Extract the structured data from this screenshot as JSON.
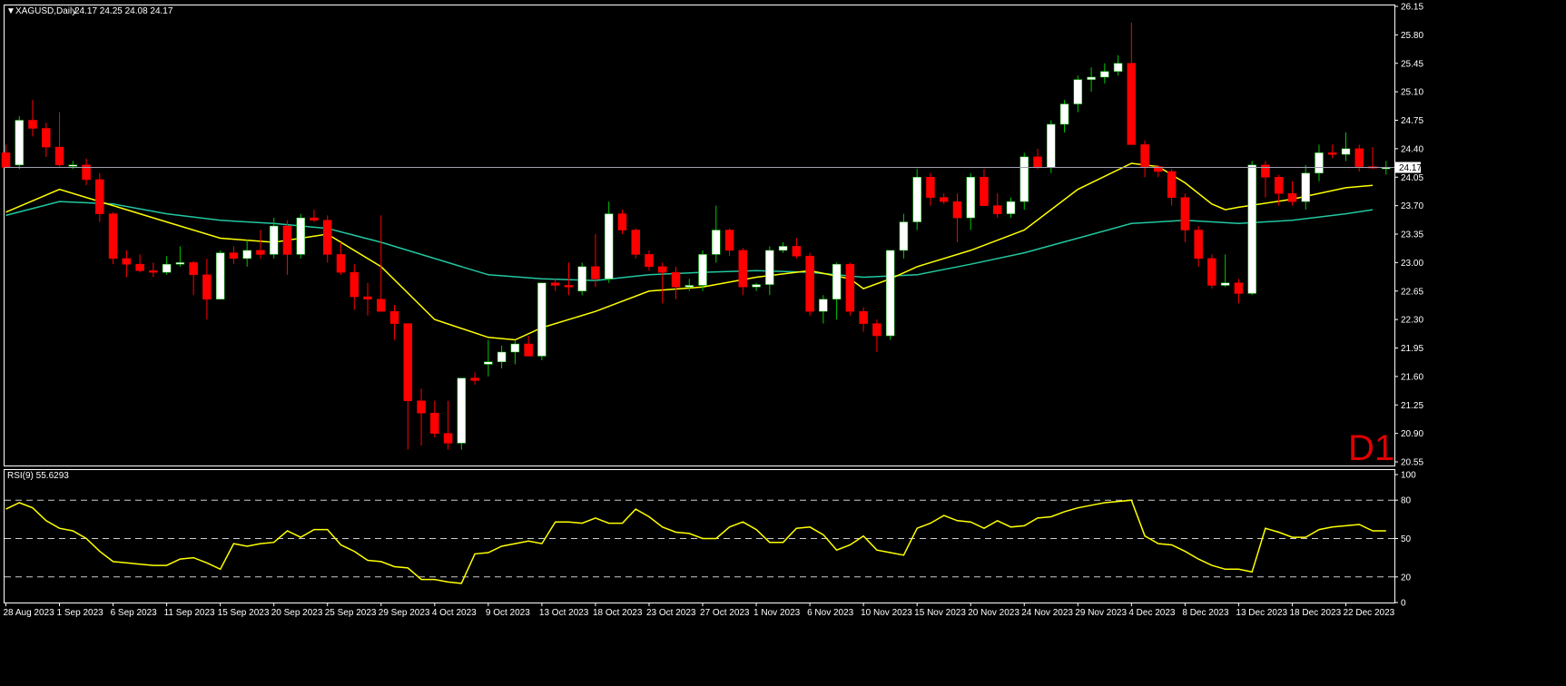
{
  "header": {
    "symbol_label": "XAGUSD,Daily",
    "ohlc_label": "24.17 24.25 24.08 24.17"
  },
  "timeframe_badge": "D1",
  "indicator": {
    "label": "RSI(9) 55.6293",
    "ticks": [
      {
        "label": "100",
        "value": 100
      },
      {
        "label": "80",
        "value": 80
      },
      {
        "label": "50",
        "value": 50
      },
      {
        "label": "20",
        "value": 20
      },
      {
        "label": "0",
        "value": 0
      }
    ],
    "levels": [
      80,
      50,
      20
    ],
    "range": [
      0,
      100
    ]
  },
  "price_tag": {
    "value": 24.17,
    "label": "24.17"
  },
  "colors": {
    "background": "#000000",
    "frame": "#ffffff",
    "bull_candle": "#ffffff",
    "bear_candle": "#ff0000",
    "bull_wick": "#00c800",
    "bear_wick": "#ff0000",
    "ma_fast": "#ffff00",
    "ma_slow": "#20c8a0",
    "rsi_line": "#ffff00",
    "level_line": "#cccccc",
    "price_line": "#a0a0b0"
  },
  "chart_data": {
    "type": "candlestick",
    "symbol": "XAGUSD",
    "timeframe": "Daily",
    "ylim": [
      20.55,
      26.15
    ],
    "y_ticks": [
      {
        "label": "26.15",
        "value": 26.15
      },
      {
        "label": "25.80",
        "value": 25.8
      },
      {
        "label": "25.45",
        "value": 25.45
      },
      {
        "label": "25.10",
        "value": 25.1
      },
      {
        "label": "24.75",
        "value": 24.75
      },
      {
        "label": "24.40",
        "value": 24.4
      },
      {
        "label": "24.05",
        "value": 24.05
      },
      {
        "label": "23.70",
        "value": 23.7
      },
      {
        "label": "23.35",
        "value": 23.35
      },
      {
        "label": "23.00",
        "value": 23.0
      },
      {
        "label": "22.65",
        "value": 22.65
      },
      {
        "label": "22.30",
        "value": 22.3
      },
      {
        "label": "21.95",
        "value": 21.95
      },
      {
        "label": "21.60",
        "value": 21.6
      },
      {
        "label": "21.25",
        "value": 21.25
      },
      {
        "label": "20.90",
        "value": 20.9
      },
      {
        "label": "20.55",
        "value": 20.55
      }
    ],
    "x_ticks": [
      {
        "label": "28 Aug 2023",
        "index": 0
      },
      {
        "label": "1 Sep 2023",
        "index": 4
      },
      {
        "label": "6 Sep 2023",
        "index": 8
      },
      {
        "label": "11 Sep 2023",
        "index": 12
      },
      {
        "label": "15 Sep 2023",
        "index": 16
      },
      {
        "label": "20 Sep 2023",
        "index": 20
      },
      {
        "label": "25 Sep 2023",
        "index": 24
      },
      {
        "label": "29 Sep 2023",
        "index": 28
      },
      {
        "label": "4 Oct 2023",
        "index": 32
      },
      {
        "label": "9 Oct 2023",
        "index": 36
      },
      {
        "label": "13 Oct 2023",
        "index": 40
      },
      {
        "label": "18 Oct 2023",
        "index": 44
      },
      {
        "label": "23 Oct 2023",
        "index": 48
      },
      {
        "label": "27 Oct 2023",
        "index": 52
      },
      {
        "label": "1 Nov 2023",
        "index": 56
      },
      {
        "label": "6 Nov 2023",
        "index": 60
      },
      {
        "label": "10 Nov 2023",
        "index": 64
      },
      {
        "label": "15 Nov 2023",
        "index": 68
      },
      {
        "label": "20 Nov 2023",
        "index": 72
      },
      {
        "label": "24 Nov 2023",
        "index": 76
      },
      {
        "label": "29 Nov 2023",
        "index": 80
      },
      {
        "label": "4 Dec 2023",
        "index": 84
      },
      {
        "label": "8 Dec 2023",
        "index": 88
      },
      {
        "label": "13 Dec 2023",
        "index": 92
      },
      {
        "label": "18 Dec 2023",
        "index": 96
      },
      {
        "label": "22 Dec 2023",
        "index": 100
      }
    ],
    "candles": [
      [
        24.35,
        24.45,
        24.17,
        24.17
      ],
      [
        24.2,
        24.8,
        24.15,
        24.75
      ],
      [
        24.75,
        25.0,
        24.55,
        24.65
      ],
      [
        24.65,
        24.72,
        24.3,
        24.42
      ],
      [
        24.42,
        24.85,
        24.18,
        24.2
      ],
      [
        24.2,
        24.25,
        24.15,
        24.2
      ],
      [
        24.2,
        24.28,
        23.95,
        24.02
      ],
      [
        24.02,
        24.1,
        23.5,
        23.6
      ],
      [
        23.6,
        23.62,
        22.98,
        23.05
      ],
      [
        23.05,
        23.15,
        22.82,
        22.98
      ],
      [
        22.98,
        23.1,
        22.88,
        22.9
      ],
      [
        22.9,
        23.0,
        22.82,
        22.88
      ],
      [
        22.88,
        23.08,
        22.85,
        22.98
      ],
      [
        22.98,
        23.2,
        22.95,
        23.0
      ],
      [
        23.0,
        23.02,
        22.6,
        22.85
      ],
      [
        22.85,
        23.05,
        22.3,
        22.55
      ],
      [
        22.55,
        23.15,
        22.55,
        23.12
      ],
      [
        23.12,
        23.2,
        22.98,
        23.05
      ],
      [
        23.05,
        23.28,
        22.95,
        23.15
      ],
      [
        23.15,
        23.4,
        23.05,
        23.1
      ],
      [
        23.1,
        23.55,
        23.05,
        23.45
      ],
      [
        23.45,
        23.52,
        22.85,
        23.1
      ],
      [
        23.1,
        23.6,
        23.05,
        23.55
      ],
      [
        23.55,
        23.65,
        23.5,
        23.52
      ],
      [
        23.52,
        23.58,
        23.0,
        23.1
      ],
      [
        23.1,
        23.25,
        22.85,
        22.88
      ],
      [
        22.88,
        22.98,
        22.42,
        22.58
      ],
      [
        22.58,
        22.75,
        22.35,
        22.55
      ],
      [
        22.55,
        23.58,
        22.4,
        22.4
      ],
      [
        22.4,
        22.48,
        22.05,
        22.25
      ],
      [
        22.25,
        22.25,
        20.7,
        21.3
      ],
      [
        21.3,
        21.45,
        20.75,
        21.15
      ],
      [
        21.15,
        21.3,
        20.85,
        20.9
      ],
      [
        20.9,
        21.3,
        20.7,
        20.78
      ],
      [
        20.78,
        21.58,
        20.7,
        21.58
      ],
      [
        21.58,
        21.65,
        21.5,
        21.55
      ],
      [
        21.75,
        22.05,
        21.6,
        21.78
      ],
      [
        21.78,
        21.98,
        21.7,
        21.9
      ],
      [
        21.9,
        22.05,
        21.75,
        22.0
      ],
      [
        22.0,
        22.1,
        21.9,
        21.85
      ],
      [
        21.85,
        22.75,
        21.8,
        22.75
      ],
      [
        22.75,
        22.8,
        22.65,
        22.72
      ],
      [
        22.72,
        23.0,
        22.6,
        22.7
      ],
      [
        22.65,
        23.0,
        22.6,
        22.95
      ],
      [
        22.95,
        23.35,
        22.7,
        22.8
      ],
      [
        22.8,
        23.75,
        22.75,
        23.6
      ],
      [
        23.6,
        23.65,
        23.35,
        23.4
      ],
      [
        23.4,
        23.42,
        23.05,
        23.1
      ],
      [
        23.1,
        23.15,
        22.9,
        22.95
      ],
      [
        22.95,
        23.0,
        22.5,
        22.88
      ],
      [
        22.88,
        22.95,
        22.55,
        22.7
      ],
      [
        22.7,
        22.8,
        22.65,
        22.72
      ],
      [
        22.72,
        23.15,
        22.65,
        23.1
      ],
      [
        23.1,
        23.7,
        23.0,
        23.4
      ],
      [
        23.4,
        23.42,
        23.08,
        23.15
      ],
      [
        23.15,
        23.18,
        22.6,
        22.7
      ],
      [
        22.7,
        22.75,
        22.65,
        22.73
      ],
      [
        22.73,
        23.2,
        22.6,
        23.15
      ],
      [
        23.15,
        23.25,
        23.12,
        23.2
      ],
      [
        23.2,
        23.3,
        23.05,
        23.08
      ],
      [
        23.08,
        23.12,
        22.35,
        22.4
      ],
      [
        22.4,
        22.6,
        22.25,
        22.55
      ],
      [
        22.55,
        23.0,
        22.3,
        22.98
      ],
      [
        22.98,
        23.0,
        22.35,
        22.4
      ],
      [
        22.4,
        22.45,
        22.15,
        22.25
      ],
      [
        22.25,
        22.3,
        21.9,
        22.1
      ],
      [
        22.1,
        23.15,
        22.05,
        23.15
      ],
      [
        23.15,
        23.6,
        23.05,
        23.5
      ],
      [
        23.5,
        24.15,
        23.4,
        24.05
      ],
      [
        24.05,
        24.1,
        23.7,
        23.8
      ],
      [
        23.8,
        23.85,
        23.72,
        23.75
      ],
      [
        23.75,
        23.85,
        23.25,
        23.55
      ],
      [
        23.55,
        24.1,
        23.4,
        24.05
      ],
      [
        24.05,
        24.15,
        23.7,
        23.7
      ],
      [
        23.7,
        23.85,
        23.55,
        23.6
      ],
      [
        23.6,
        23.8,
        23.55,
        23.75
      ],
      [
        23.75,
        24.35,
        23.65,
        24.3
      ],
      [
        24.3,
        24.4,
        24.15,
        24.17
      ],
      [
        24.17,
        24.75,
        24.1,
        24.7
      ],
      [
        24.7,
        25.0,
        24.6,
        24.95
      ],
      [
        24.95,
        25.3,
        24.85,
        25.25
      ],
      [
        25.25,
        25.4,
        25.1,
        25.28
      ],
      [
        25.28,
        25.45,
        25.2,
        25.35
      ],
      [
        25.35,
        25.55,
        25.3,
        25.45
      ],
      [
        25.45,
        25.95,
        24.45,
        24.45
      ],
      [
        24.45,
        24.5,
        24.05,
        24.18
      ],
      [
        24.18,
        24.2,
        24.05,
        24.12
      ],
      [
        24.12,
        24.15,
        23.7,
        23.8
      ],
      [
        23.8,
        23.85,
        23.25,
        23.4
      ],
      [
        23.4,
        23.45,
        22.95,
        23.05
      ],
      [
        23.05,
        23.1,
        22.68,
        22.72
      ],
      [
        22.72,
        23.1,
        22.7,
        22.75
      ],
      [
        22.75,
        22.8,
        22.5,
        22.62
      ],
      [
        22.62,
        24.25,
        22.6,
        24.2
      ],
      [
        24.2,
        24.25,
        23.8,
        24.05
      ],
      [
        24.05,
        24.08,
        23.7,
        23.85
      ],
      [
        23.85,
        24.0,
        23.7,
        23.75
      ],
      [
        23.75,
        24.2,
        23.65,
        24.1
      ],
      [
        24.1,
        24.45,
        24.0,
        24.35
      ],
      [
        24.35,
        24.45,
        24.28,
        24.33
      ],
      [
        24.33,
        24.6,
        24.25,
        24.4
      ],
      [
        24.4,
        24.45,
        24.12,
        24.18
      ],
      [
        24.18,
        24.42,
        24.15,
        24.17
      ],
      [
        24.17,
        24.25,
        24.08,
        24.17
      ]
    ],
    "ma_fast": [
      [
        0,
        23.62
      ],
      [
        4,
        23.9
      ],
      [
        8,
        23.7
      ],
      [
        12,
        23.5
      ],
      [
        16,
        23.3
      ],
      [
        20,
        23.25
      ],
      [
        24,
        23.35
      ],
      [
        28,
        22.95
      ],
      [
        32,
        22.3
      ],
      [
        36,
        22.08
      ],
      [
        38,
        22.05
      ],
      [
        40,
        22.2
      ],
      [
        44,
        22.4
      ],
      [
        48,
        22.65
      ],
      [
        52,
        22.7
      ],
      [
        56,
        22.82
      ],
      [
        60,
        22.9
      ],
      [
        63,
        22.8
      ],
      [
        64,
        22.68
      ],
      [
        66,
        22.8
      ],
      [
        68,
        22.95
      ],
      [
        72,
        23.15
      ],
      [
        76,
        23.4
      ],
      [
        80,
        23.9
      ],
      [
        84,
        24.22
      ],
      [
        86,
        24.18
      ],
      [
        88,
        23.98
      ],
      [
        90,
        23.72
      ],
      [
        91,
        23.65
      ],
      [
        92,
        23.68
      ],
      [
        96,
        23.78
      ],
      [
        100,
        23.92
      ],
      [
        102,
        23.95
      ]
    ],
    "ma_slow": [
      [
        0,
        23.58
      ],
      [
        4,
        23.75
      ],
      [
        8,
        23.72
      ],
      [
        12,
        23.6
      ],
      [
        16,
        23.52
      ],
      [
        20,
        23.48
      ],
      [
        24,
        23.42
      ],
      [
        28,
        23.25
      ],
      [
        32,
        23.05
      ],
      [
        36,
        22.85
      ],
      [
        40,
        22.8
      ],
      [
        44,
        22.78
      ],
      [
        48,
        22.85
      ],
      [
        52,
        22.88
      ],
      [
        56,
        22.9
      ],
      [
        60,
        22.88
      ],
      [
        64,
        22.82
      ],
      [
        68,
        22.85
      ],
      [
        72,
        22.98
      ],
      [
        76,
        23.12
      ],
      [
        80,
        23.3
      ],
      [
        84,
        23.48
      ],
      [
        88,
        23.52
      ],
      [
        92,
        23.48
      ],
      [
        96,
        23.52
      ],
      [
        100,
        23.6
      ],
      [
        102,
        23.65
      ]
    ],
    "rsi": [
      [
        0,
        73
      ],
      [
        1,
        78
      ],
      [
        2,
        74
      ],
      [
        3,
        64
      ],
      [
        4,
        58
      ],
      [
        5,
        56
      ],
      [
        6,
        50
      ],
      [
        7,
        40
      ],
      [
        8,
        32
      ],
      [
        9,
        31
      ],
      [
        10,
        30
      ],
      [
        11,
        29
      ],
      [
        12,
        29
      ],
      [
        13,
        34
      ],
      [
        14,
        35
      ],
      [
        15,
        31
      ],
      [
        16,
        26
      ],
      [
        17,
        46
      ],
      [
        18,
        44
      ],
      [
        19,
        46
      ],
      [
        20,
        47
      ],
      [
        21,
        56
      ],
      [
        22,
        51
      ],
      [
        23,
        57
      ],
      [
        24,
        57
      ],
      [
        25,
        45
      ],
      [
        26,
        40
      ],
      [
        27,
        33
      ],
      [
        28,
        32
      ],
      [
        29,
        28
      ],
      [
        30,
        27
      ],
      [
        31,
        18
      ],
      [
        32,
        18
      ],
      [
        33,
        16
      ],
      [
        34,
        15
      ],
      [
        35,
        38
      ],
      [
        36,
        39
      ],
      [
        37,
        44
      ],
      [
        38,
        46
      ],
      [
        39,
        48
      ],
      [
        40,
        46
      ],
      [
        41,
        63
      ],
      [
        42,
        63
      ],
      [
        43,
        62
      ],
      [
        44,
        66
      ],
      [
        45,
        62
      ],
      [
        46,
        62
      ],
      [
        47,
        73
      ],
      [
        48,
        67
      ],
      [
        49,
        59
      ],
      [
        50,
        55
      ],
      [
        51,
        54
      ],
      [
        52,
        50
      ],
      [
        53,
        50
      ],
      [
        54,
        59
      ],
      [
        55,
        63
      ],
      [
        56,
        57
      ],
      [
        57,
        47
      ],
      [
        58,
        47
      ],
      [
        59,
        58
      ],
      [
        60,
        59
      ],
      [
        61,
        53
      ],
      [
        62,
        41
      ],
      [
        63,
        45
      ],
      [
        64,
        52
      ],
      [
        65,
        41
      ],
      [
        66,
        39
      ],
      [
        67,
        37
      ],
      [
        68,
        58
      ],
      [
        69,
        62
      ],
      [
        70,
        68
      ],
      [
        71,
        64
      ],
      [
        72,
        63
      ],
      [
        73,
        58
      ],
      [
        74,
        64
      ],
      [
        75,
        59
      ],
      [
        76,
        60
      ],
      [
        77,
        66
      ],
      [
        78,
        67
      ],
      [
        79,
        71
      ],
      [
        80,
        74
      ],
      [
        81,
        76
      ],
      [
        82,
        78
      ],
      [
        83,
        79
      ],
      [
        84,
        80
      ],
      [
        85,
        52
      ],
      [
        86,
        46
      ],
      [
        87,
        45
      ],
      [
        88,
        40
      ],
      [
        89,
        34
      ],
      [
        90,
        29
      ],
      [
        91,
        26
      ],
      [
        92,
        26
      ],
      [
        93,
        24
      ],
      [
        94,
        58
      ],
      [
        95,
        55
      ],
      [
        96,
        51
      ],
      [
        97,
        51
      ],
      [
        98,
        57
      ],
      [
        99,
        59
      ],
      [
        100,
        60
      ],
      [
        101,
        61
      ],
      [
        102,
        56
      ],
      [
        103,
        56
      ]
    ]
  }
}
